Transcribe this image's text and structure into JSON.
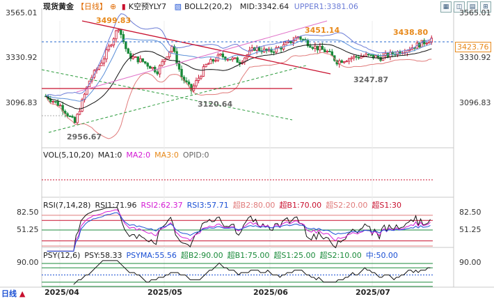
{
  "header": {
    "title": "现货黄金",
    "period": "【日线】",
    "kline_label": "K空预YLY7",
    "boll_label": "BOLL2(20,2)",
    "mid": "MID:3342.64",
    "upper": "UPPER1:3381.06"
  },
  "price_axis": {
    "left": [
      "3565.01",
      "3330.92",
      "3096.83"
    ],
    "right": [
      "3565.01",
      "3330.92",
      "3096.83"
    ],
    "current_price": "3423.76"
  },
  "annotations": {
    "high1": "3499.83",
    "high2": "3451.14",
    "high3": "3438.80",
    "low1": "3120.64",
    "low2": "3247.87",
    "low0": "2956.67"
  },
  "vol": {
    "label": "VOL(5,10,20)",
    "ma1": "MA1:0",
    "ma2": "MA2:0",
    "ma3": "MA3:0",
    "opid": "OPID:0"
  },
  "rsi": {
    "label": "RSI(7,14,28)",
    "rsi1": "RSI1:71.96",
    "rsi2": "RSI2:62.37",
    "rsi3": "RSI3:57.71",
    "b2": "超B2:80.00",
    "b1": "超B1:70.00",
    "s2": "超S2:20.00",
    "s1": "超S1:30",
    "axis": [
      "82.50",
      "51.25"
    ]
  },
  "psy": {
    "label": "PSY(12,6)",
    "psy": "PSY:58.33",
    "psyma": "PSYMA:55.56",
    "b2": "超B2:90.00",
    "b1": "超B1:75.00",
    "s1": "超S1:25.00",
    "s2": "超S2:10.00",
    "mid": "中:50.00",
    "axis": [
      "90.00"
    ]
  },
  "x_axis": [
    "2025/04",
    "2025/05",
    "2025/06",
    "2025/07"
  ],
  "footer": {
    "period_button": "日线"
  },
  "colors": {
    "up": "#c8102e",
    "down": "#1a8a3a",
    "mid": "#111111",
    "upper": "#6a7bd6",
    "lower": "#e07a7a",
    "rsi1": "#111111",
    "rsi2": "#d41ad4",
    "rsi3": "#1a4fd4",
    "annot": "#e8891a",
    "dashblue": "#2266cc"
  }
}
